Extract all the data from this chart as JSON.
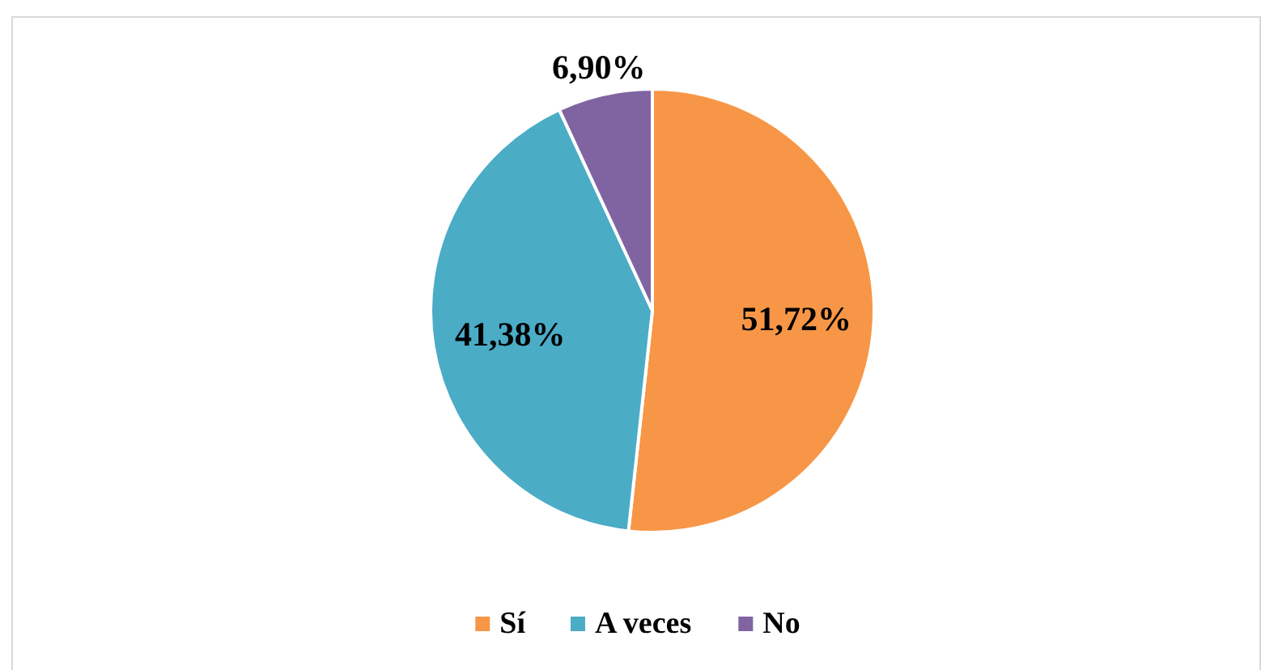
{
  "chart_data": {
    "type": "pie",
    "categories": [
      "Sí",
      "A veces",
      "No"
    ],
    "values": [
      51.72,
      41.38,
      6.9
    ],
    "colors": [
      "#f79646",
      "#4bacc6",
      "#8064a2"
    ],
    "value_labels": [
      "51,72%",
      "41,38%",
      "6,90%"
    ],
    "legend": "bottom"
  }
}
